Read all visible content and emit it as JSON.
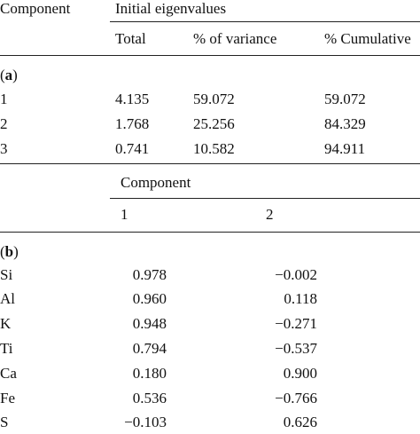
{
  "table_a": {
    "header": {
      "component": "Component",
      "group": "Initial eigenvalues",
      "sub": [
        "Total",
        "% of variance",
        "% Cumulative"
      ]
    },
    "section_prefix": "(",
    "section_letter": "a",
    "section_suffix": ")",
    "rows": [
      {
        "component": "1",
        "total": "4.135",
        "variance": "59.072",
        "cumulative": "59.072"
      },
      {
        "component": "2",
        "total": "1.768",
        "variance": "25.256",
        "cumulative": "84.329"
      },
      {
        "component": "3",
        "total": "0.741",
        "variance": "10.582",
        "cumulative": "94.911"
      }
    ]
  },
  "table_b": {
    "header": {
      "group": "Component",
      "sub": [
        "1",
        "2"
      ]
    },
    "section_prefix": "(",
    "section_letter": "b",
    "section_suffix": ")",
    "rows": [
      {
        "element": "Si",
        "c1": "0.978",
        "c2": "−0.002"
      },
      {
        "element": "Al",
        "c1": "0.960",
        "c2": "0.118"
      },
      {
        "element": "K",
        "c1": "0.948",
        "c2": "−0.271"
      },
      {
        "element": "Ti",
        "c1": "0.794",
        "c2": "−0.537"
      },
      {
        "element": "Ca",
        "c1": "0.180",
        "c2": "0.900"
      },
      {
        "element": "Fe",
        "c1": "0.536",
        "c2": "−0.766"
      },
      {
        "element": "S",
        "c1": "−0.103",
        "c2": "0.626"
      }
    ]
  }
}
